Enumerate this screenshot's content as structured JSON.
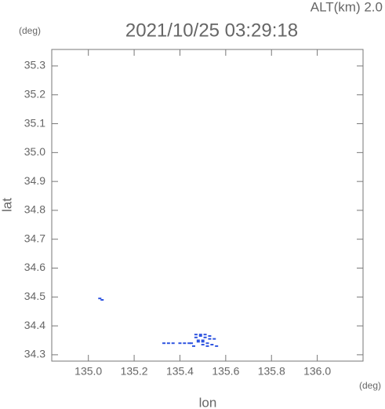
{
  "chart_data": {
    "type": "scatter",
    "title": "2021/10/25 03:29:18",
    "subtitle": "ALT(km) 2.0",
    "y_unit": "(deg)",
    "x_unit": "(deg)",
    "ylabel": "lat",
    "xlabel": "lon",
    "color": "#2f55e0",
    "x": [
      135.05,
      135.06,
      135.33,
      135.35,
      135.37,
      135.4,
      135.42,
      135.44,
      135.45,
      135.46,
      135.47,
      135.48,
      135.49,
      135.5,
      135.5,
      135.51,
      135.52,
      135.53,
      135.54,
      135.55,
      135.56,
      135.47,
      135.49,
      135.51,
      135.53,
      135.52,
      135.5,
      135.48
    ],
    "values": [
      34.495,
      34.49,
      34.34,
      34.34,
      34.34,
      34.34,
      34.34,
      34.34,
      34.34,
      34.33,
      34.36,
      34.35,
      34.365,
      34.35,
      34.335,
      34.36,
      34.33,
      34.355,
      34.335,
      34.355,
      34.33,
      34.37,
      34.37,
      34.37,
      34.365,
      34.34,
      34.345,
      34.345
    ],
    "xlim": [
      134.84,
      136.2
    ],
    "ylim": [
      34.278,
      35.357
    ],
    "xticks": [
      {
        "value": 135,
        "label": "135.0"
      },
      135.2,
      135.4,
      135.6,
      135.8,
      {
        "value": 136,
        "label": "136.0"
      }
    ],
    "yticks": [
      34.3,
      34.4,
      34.5,
      34.6,
      34.7,
      34.8,
      34.9,
      {
        "value": 35,
        "label": "35.0"
      },
      35.1,
      35.2,
      35.3
    ]
  }
}
